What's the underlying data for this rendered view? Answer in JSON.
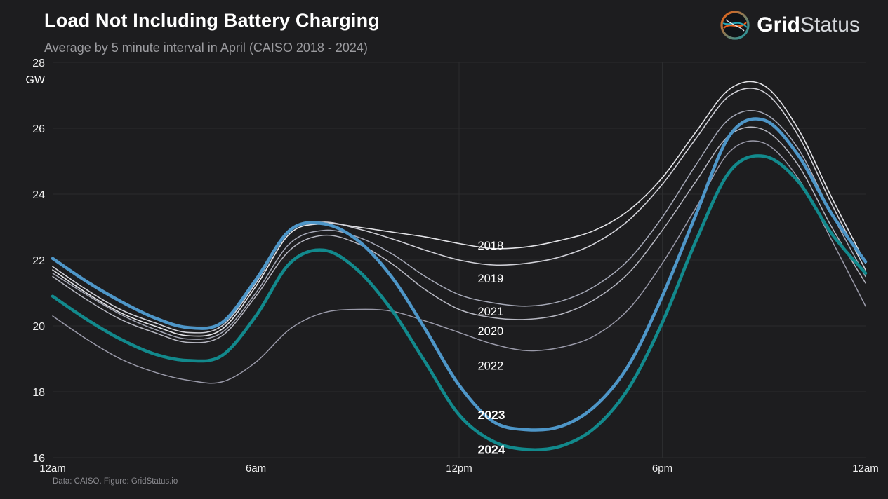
{
  "header": {
    "title": "Load Not Including Battery Charging",
    "subtitle": "Average by 5 minute interval in April (CAISO 2018 - 2024)"
  },
  "brand": {
    "bold": "Grid",
    "light": "Status"
  },
  "footer": {
    "credit": "Data: CAISO. Figure: GridStatus.io"
  },
  "colors": {
    "background": "#1d1d1f",
    "grid": "#2b2c2e",
    "tick_text": "#efefef",
    "accent_blue_2023": "#4e96c8",
    "accent_teal_2024": "#12898c"
  },
  "chart_data": {
    "type": "line",
    "title": "Load Not Including Battery Charging",
    "subtitle": "Average by 5 minute interval in April (CAISO 2018 - 2024)",
    "ylabel": "GW",
    "xlabel": "",
    "ylim": [
      16,
      28
    ],
    "yticks": [
      28,
      26,
      24,
      22,
      20,
      18,
      16
    ],
    "x_unit": "hour_of_day",
    "xticks": [
      {
        "hour": 0,
        "label": "12am"
      },
      {
        "hour": 6,
        "label": "6am"
      },
      {
        "hour": 12,
        "label": "12pm"
      },
      {
        "hour": 18,
        "label": "6pm"
      },
      {
        "hour": 24,
        "label": "12am"
      }
    ],
    "grid": true,
    "legend": "inline-labels",
    "x_hours": [
      0,
      1,
      2,
      3,
      4,
      5,
      6,
      7,
      8,
      9,
      10,
      11,
      12,
      13,
      14,
      15,
      16,
      17,
      18,
      19,
      20,
      21,
      22,
      23,
      24
    ],
    "series": [
      {
        "name": "2018",
        "color": "#e3e3e7",
        "width": 1.6,
        "bold_label": false,
        "label_at": {
          "hour": 12.55,
          "gw": 22.45
        },
        "values": [
          21.7,
          21.0,
          20.4,
          20.0,
          19.7,
          19.9,
          21.2,
          22.8,
          23.1,
          23.0,
          22.85,
          22.7,
          22.5,
          22.35,
          22.4,
          22.6,
          22.9,
          23.5,
          24.5,
          25.9,
          27.2,
          27.3,
          26.0,
          23.9,
          21.9
        ]
      },
      {
        "name": "2019",
        "color": "#cfcfd6",
        "width": 1.6,
        "bold_label": false,
        "label_at": {
          "hour": 12.55,
          "gw": 21.45
        },
        "values": [
          21.8,
          21.1,
          20.5,
          20.1,
          19.8,
          20.0,
          21.3,
          22.9,
          23.15,
          22.95,
          22.65,
          22.3,
          22.0,
          21.85,
          21.9,
          22.1,
          22.5,
          23.2,
          24.3,
          25.7,
          27.0,
          27.1,
          25.8,
          23.7,
          21.7
        ]
      },
      {
        "name": "2020",
        "color": "#b7b8c2",
        "width": 1.5,
        "bold_label": false,
        "label_at": {
          "hour": 12.55,
          "gw": 19.85
        },
        "values": [
          21.5,
          20.8,
          20.2,
          19.8,
          19.5,
          19.7,
          20.9,
          22.3,
          22.75,
          22.5,
          21.9,
          21.1,
          20.5,
          20.25,
          20.2,
          20.35,
          20.8,
          21.6,
          22.9,
          24.4,
          25.8,
          25.95,
          24.9,
          23.0,
          21.3
        ]
      },
      {
        "name": "2021",
        "color": "#a6a9b7",
        "width": 1.5,
        "bold_label": false,
        "label_at": {
          "hour": 12.55,
          "gw": 20.45
        },
        "values": [
          21.6,
          20.95,
          20.35,
          19.9,
          19.6,
          19.8,
          21.0,
          22.5,
          22.9,
          22.7,
          22.2,
          21.5,
          20.95,
          20.7,
          20.6,
          20.75,
          21.2,
          22.0,
          23.3,
          24.9,
          26.3,
          26.45,
          25.4,
          23.4,
          21.5
        ]
      },
      {
        "name": "2022",
        "color": "#9a9aa9",
        "width": 1.5,
        "bold_label": false,
        "label_at": {
          "hour": 12.55,
          "gw": 18.8
        },
        "values": [
          20.3,
          19.6,
          19.0,
          18.6,
          18.35,
          18.3,
          18.9,
          19.9,
          20.4,
          20.5,
          20.45,
          20.15,
          19.8,
          19.45,
          19.25,
          19.35,
          19.7,
          20.5,
          21.9,
          23.6,
          25.3,
          25.55,
          24.5,
          22.6,
          20.6
        ]
      },
      {
        "name": "2023",
        "color": "#4e96c8",
        "width": 4.5,
        "bold_label": true,
        "label_at": {
          "hour": 12.55,
          "gw": 17.3
        },
        "values": [
          22.05,
          21.35,
          20.75,
          20.25,
          19.95,
          20.1,
          21.4,
          22.9,
          23.1,
          22.6,
          21.5,
          19.9,
          18.2,
          17.1,
          16.85,
          16.95,
          17.55,
          18.8,
          20.9,
          23.4,
          25.8,
          26.25,
          25.2,
          23.4,
          21.95
        ]
      },
      {
        "name": "2024",
        "color": "#12898c",
        "width": 4.5,
        "bold_label": true,
        "label_at": {
          "hour": 12.55,
          "gw": 16.25
        },
        "values": [
          20.9,
          20.2,
          19.6,
          19.15,
          18.95,
          19.1,
          20.3,
          21.9,
          22.3,
          21.7,
          20.5,
          18.9,
          17.3,
          16.5,
          16.25,
          16.35,
          16.9,
          18.1,
          20.1,
          22.6,
          24.7,
          25.15,
          24.4,
          22.8,
          21.6
        ]
      }
    ]
  }
}
